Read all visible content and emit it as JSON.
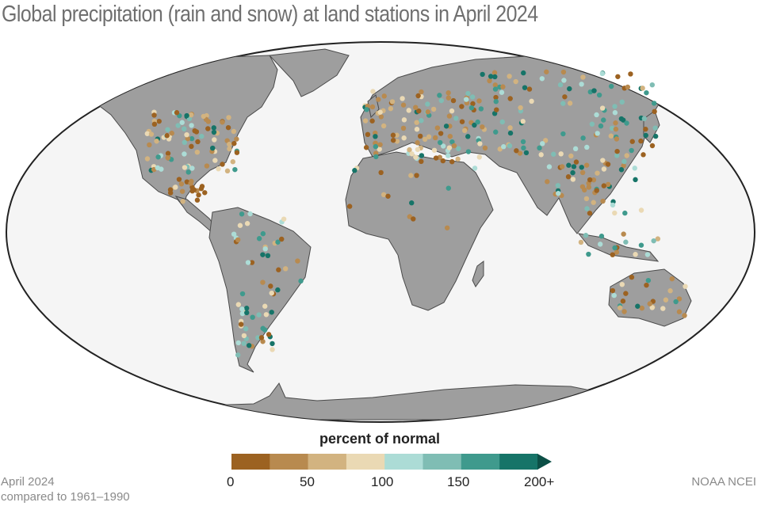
{
  "title": "Global precipitation (rain and snow) at land stations in April 2024",
  "legend": {
    "title": "percent of normal",
    "ticks": [
      "0",
      "50",
      "100",
      "150",
      "200+"
    ],
    "bins": [
      {
        "range": "0-25",
        "color": "#9c6221"
      },
      {
        "range": "25-50",
        "color": "#b88a4f"
      },
      {
        "range": "50-75",
        "color": "#d2b380"
      },
      {
        "range": "75-100",
        "color": "#ead9b4"
      },
      {
        "range": "100-125",
        "color": "#acdcd6"
      },
      {
        "range": "125-150",
        "color": "#7fbdb4"
      },
      {
        "range": "150-175",
        "color": "#3f9a8d"
      },
      {
        "range": "175-200+",
        "color": "#167468"
      }
    ],
    "arrow_color": "#0c4f46"
  },
  "colors": {
    "ocean": "#f5f5f5",
    "land": "#9e9e9e",
    "border": "#4a4a4a"
  },
  "footer": {
    "period": "April 2024",
    "baseline": "compared to 1961–1990",
    "source": "NOAA NCEI"
  }
}
